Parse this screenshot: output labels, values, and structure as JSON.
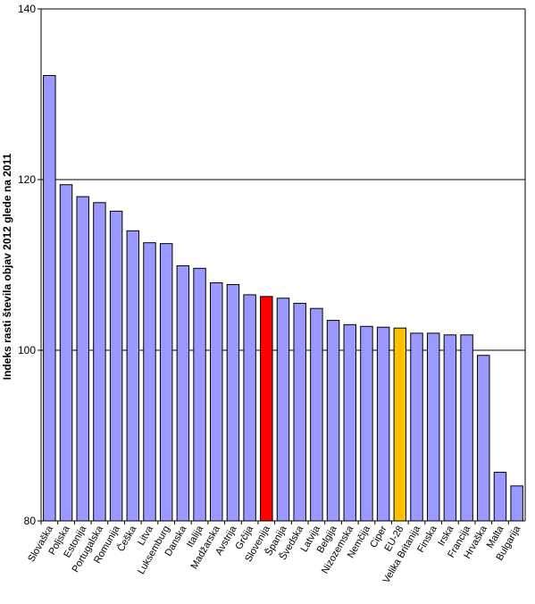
{
  "chart_data": {
    "type": "bar",
    "ylabel": "Indeks rasti števila objav 2012 glede na 2011",
    "ylim": [
      80,
      140
    ],
    "yticks": [
      80,
      100,
      120,
      140
    ],
    "grid": true,
    "colors": {
      "default": "#9999ff",
      "highlight_slovenija": "#ff0000",
      "highlight_eu": "#ffc000",
      "outline": "#000000",
      "gridline": "#000000"
    },
    "categories": [
      "Slovaška",
      "Poljska",
      "Estonija",
      "Portugalska",
      "Romunija",
      "Češka",
      "Litva",
      "Luksemburg",
      "Danska",
      "Italija",
      "Madžarska",
      "Avstrija",
      "Grčija",
      "Slovenija",
      "Španija",
      "Švedska",
      "Latvija",
      "Belgija",
      "Nizozemska",
      "Nemčija",
      "Ciper",
      "EU-28",
      "Velika Britanija",
      "Finska",
      "Irska",
      "Francija",
      "Hrvaška",
      "Malta",
      "Bulgarija"
    ],
    "values": [
      132.2,
      119.4,
      118.0,
      117.3,
      116.3,
      114.0,
      112.6,
      112.5,
      109.9,
      109.6,
      107.9,
      107.7,
      106.5,
      106.3,
      106.1,
      105.5,
      104.9,
      103.5,
      103.0,
      102.8,
      102.7,
      102.6,
      102.0,
      102.0,
      101.8,
      101.8,
      99.4,
      85.7,
      84.1
    ],
    "highlight": {
      "Slovenija": "highlight_slovenija",
      "EU-28": "highlight_eu"
    }
  }
}
